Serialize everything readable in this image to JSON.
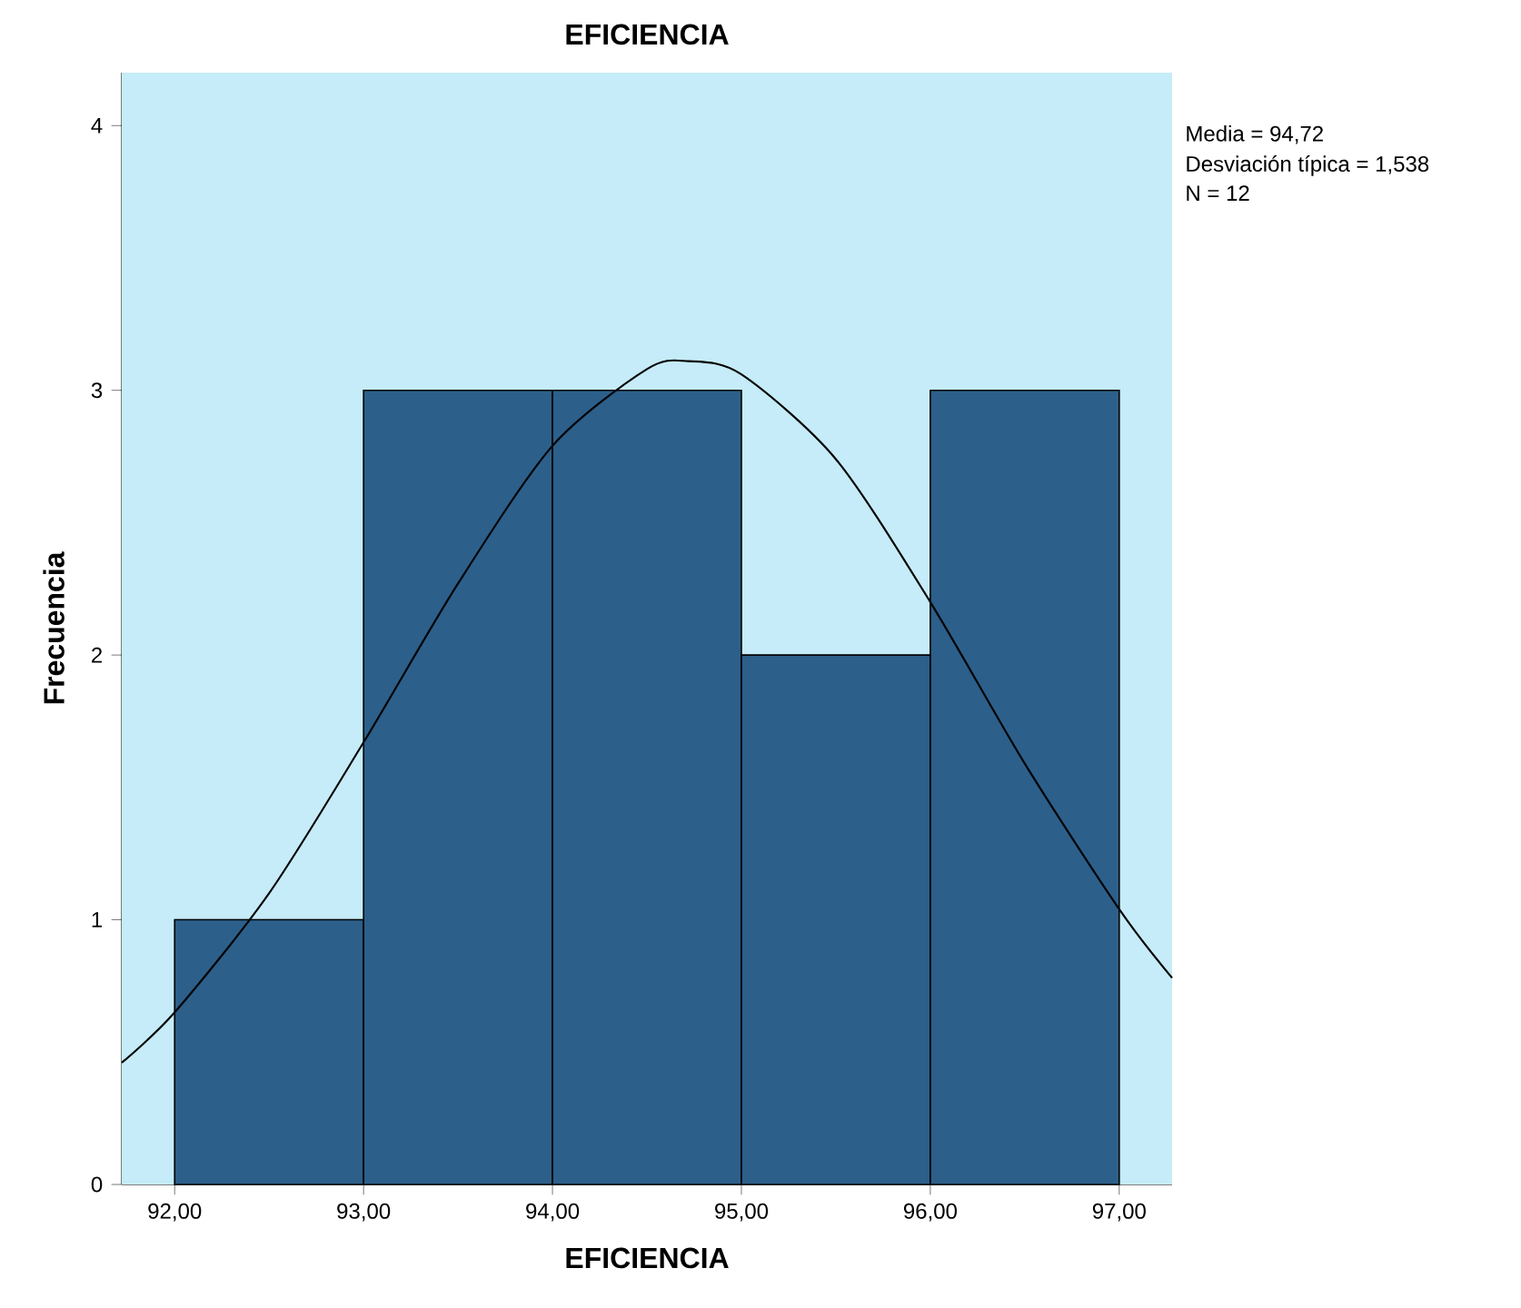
{
  "chart_data": {
    "type": "histogram",
    "title": "EFICIENCIA",
    "xlabel": "EFICIENCIA",
    "ylabel": "Frecuencia",
    "bins": [
      92,
      93,
      94,
      95,
      96,
      97
    ],
    "series": [
      {
        "color": "#2c5f8a",
        "values": [
          1,
          3,
          3,
          2,
          3
        ]
      },
      {
        "type": "line",
        "color": "#000000",
        "x": [
          91.72,
          92.0,
          92.5,
          93.0,
          93.5,
          94.0,
          94.5,
          94.72,
          95.0,
          95.5,
          96.0,
          96.5,
          97.0,
          97.28
        ],
        "values": [
          0.46,
          0.65,
          1.1,
          1.67,
          2.27,
          2.79,
          3.08,
          3.11,
          3.06,
          2.74,
          2.2,
          1.59,
          1.04,
          0.78
        ]
      }
    ],
    "xlim": [
      91.72,
      97.28
    ],
    "ylim": [
      0,
      4.2
    ],
    "xticks": [
      {
        "value": 92,
        "label": "92,00"
      },
      {
        "value": 93,
        "label": "93,00"
      },
      {
        "value": 94,
        "label": "94,00"
      },
      {
        "value": 95,
        "label": "95,00"
      },
      {
        "value": 96,
        "label": "96,00"
      },
      {
        "value": 97,
        "label": "97,00"
      }
    ],
    "yticks": [
      0,
      1,
      2,
      3,
      4
    ],
    "bands": [
      {
        "axis": "x",
        "from": 91.72,
        "to": 97.28,
        "color": "#c5ecf8"
      }
    ],
    "grid": false,
    "marker": "none",
    "line_style": "solid",
    "annotations": [
      "Media = 94,72",
      "Desviación típica = 1,538",
      "N = 12"
    ]
  }
}
